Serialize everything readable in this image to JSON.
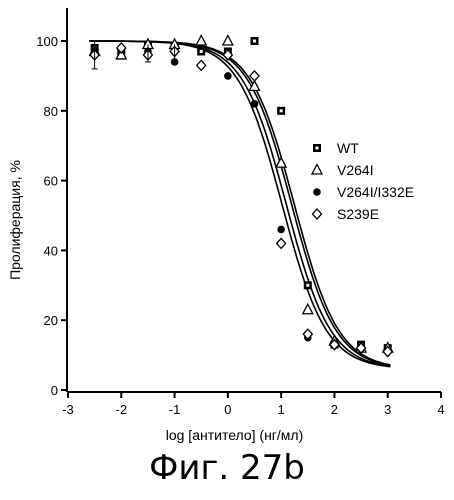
{
  "caption": "Фиг. 27b",
  "chart_data": {
    "type": "scatter",
    "xlabel": "log [антитело] (нг/мл)",
    "ylabel": "Пролиферация, %",
    "xlim": [
      -3,
      4
    ],
    "ylim": [
      0,
      100
    ],
    "xticks": [
      -3,
      -2,
      -1,
      0,
      1,
      2,
      3,
      4
    ],
    "yticks": [
      0,
      20,
      40,
      60,
      80,
      100
    ],
    "grid": false,
    "legend_position": "right",
    "series": [
      {
        "name": "WT",
        "marker": "square-dot",
        "x": [
          -2.5,
          -2,
          -1.5,
          -1,
          -0.5,
          0,
          0.5,
          1,
          1.5,
          2,
          2.5,
          3
        ],
        "y": [
          98,
          97,
          99,
          98,
          97,
          97,
          100,
          80,
          30,
          13,
          13,
          12
        ],
        "fit": {
          "top": 100,
          "bottom": 6,
          "ec50_log": 1.25,
          "hill": 1.05
        }
      },
      {
        "name": "V264I",
        "marker": "triangle-open",
        "x": [
          -2.5,
          -2,
          -1.5,
          -1,
          -0.5,
          0,
          0.5,
          1,
          1.5,
          2,
          2.5,
          3
        ],
        "y": [
          97,
          96,
          99,
          99,
          100,
          100,
          87,
          65,
          23,
          14,
          12,
          12
        ],
        "fit": {
          "top": 100,
          "bottom": 6,
          "ec50_log": 1.2,
          "hill": 1.05
        }
      },
      {
        "name": "V264I/I332E",
        "marker": "circle-filled",
        "x": [
          -2.5,
          -2,
          -1.5,
          -1,
          -0.5,
          0,
          0.5,
          1,
          1.5,
          2,
          2.5,
          3
        ],
        "y": [
          97,
          98,
          97,
          94,
          93,
          90,
          82,
          46,
          15,
          13,
          12,
          11
        ],
        "fit": {
          "top": 100,
          "bottom": 6,
          "ec50_log": 1.02,
          "hill": 1.05
        }
      },
      {
        "name": "S239E",
        "marker": "diamond-open",
        "x": [
          -2.5,
          -2,
          -1.5,
          -1,
          -0.5,
          0,
          0.5,
          1,
          1.5,
          2,
          2.5,
          3
        ],
        "y": [
          96,
          98,
          96,
          97,
          93,
          96,
          90,
          42,
          16,
          13,
          12,
          11
        ],
        "fit": {
          "top": 100,
          "bottom": 6,
          "ec50_log": 1.1,
          "hill": 1.05
        }
      }
    ]
  }
}
